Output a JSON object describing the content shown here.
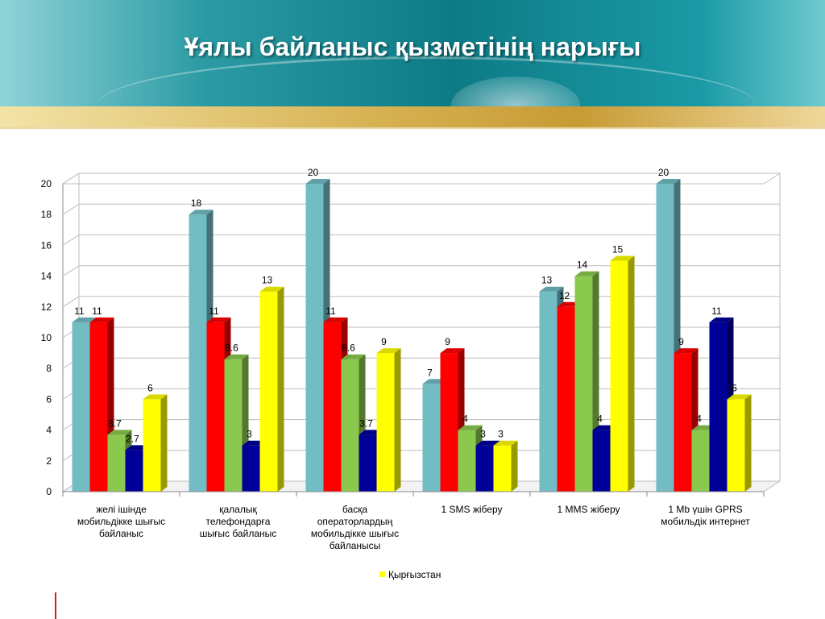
{
  "slide": {
    "title": "Ұялы байланыс қызметінің нарығы"
  },
  "colors": {
    "series": [
      "#72bcc4",
      "#ff0000",
      "#8bc94e",
      "#000099",
      "#ffff00"
    ],
    "grid": "#bdbdbd"
  },
  "chart_data": {
    "type": "bar",
    "style": "3d clustered columns",
    "ylim": [
      0,
      20
    ],
    "yticks": [
      "0",
      "2",
      "4",
      "6",
      "8",
      "10",
      "12",
      "14",
      "16",
      "18",
      "20"
    ],
    "grid": true,
    "legend_position": "bottom",
    "categories": [
      [
        "желі ішінде",
        "мобильдікке шығыс",
        "байланыс"
      ],
      [
        "қалалық",
        "телефондарға",
        "шығыс байланыс"
      ],
      [
        "басқа",
        "операторлардың",
        "мобильдікке шығыс",
        "байланысы"
      ],
      [
        "1 SMS жіберу"
      ],
      [
        "1 MMS жіберу"
      ],
      [
        "1 Mb үшін GPRS",
        "мобильдік интернет"
      ]
    ],
    "series": [
      {
        "values": [
          11,
          18,
          20,
          7,
          13,
          20
        ],
        "labels": [
          "11",
          "18",
          "20",
          "7",
          "13",
          "20"
        ]
      },
      {
        "values": [
          11,
          11,
          11,
          9,
          12,
          9
        ],
        "labels": [
          "11",
          "11",
          "11",
          "9",
          "12",
          "9"
        ]
      },
      {
        "values": [
          3.7,
          8.6,
          8.6,
          4,
          14,
          4
        ],
        "labels": [
          "3.7",
          "8.6",
          "8.6",
          "4",
          "14",
          "4"
        ]
      },
      {
        "values": [
          2.7,
          3,
          3.7,
          3,
          4,
          11
        ],
        "labels": [
          "2.7",
          "3",
          "3.7",
          "3",
          "4",
          "11"
        ]
      },
      {
        "name": "Қырғызстан",
        "values": [
          6,
          13,
          9,
          3,
          15,
          6
        ],
        "labels": [
          "6",
          "13",
          "9",
          "3",
          "15",
          "6"
        ]
      }
    ]
  }
}
